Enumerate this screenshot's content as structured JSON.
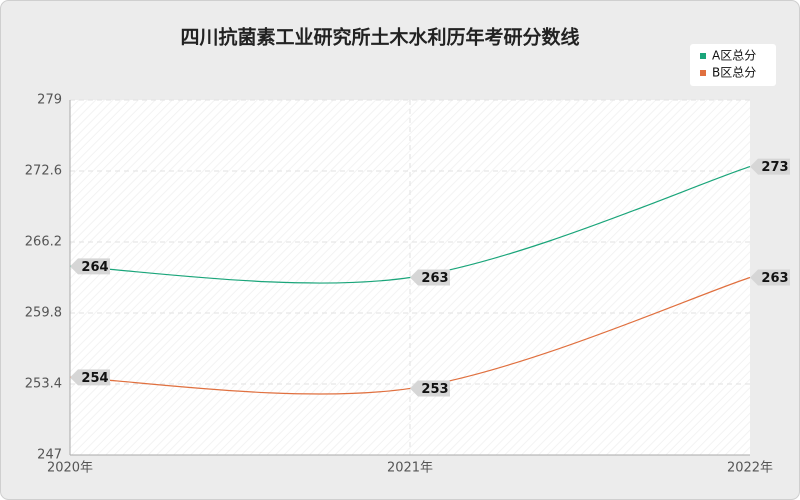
{
  "chart_data": {
    "type": "line",
    "title": "四川抗菌素工业研究所土木水利历年考研分数线",
    "categories": [
      "2020年",
      "2021年",
      "2022年"
    ],
    "series": [
      {
        "name": "A区总分",
        "color": "#1aa57a",
        "values": [
          264,
          263,
          273
        ]
      },
      {
        "name": "B区总分",
        "color": "#e0703f",
        "values": [
          254,
          253,
          263
        ]
      }
    ],
    "ylim": [
      247,
      279
    ],
    "yticks": [
      247,
      253.4,
      259.8,
      266.2,
      272.6,
      279
    ],
    "grid": true,
    "legend": "top-right"
  }
}
